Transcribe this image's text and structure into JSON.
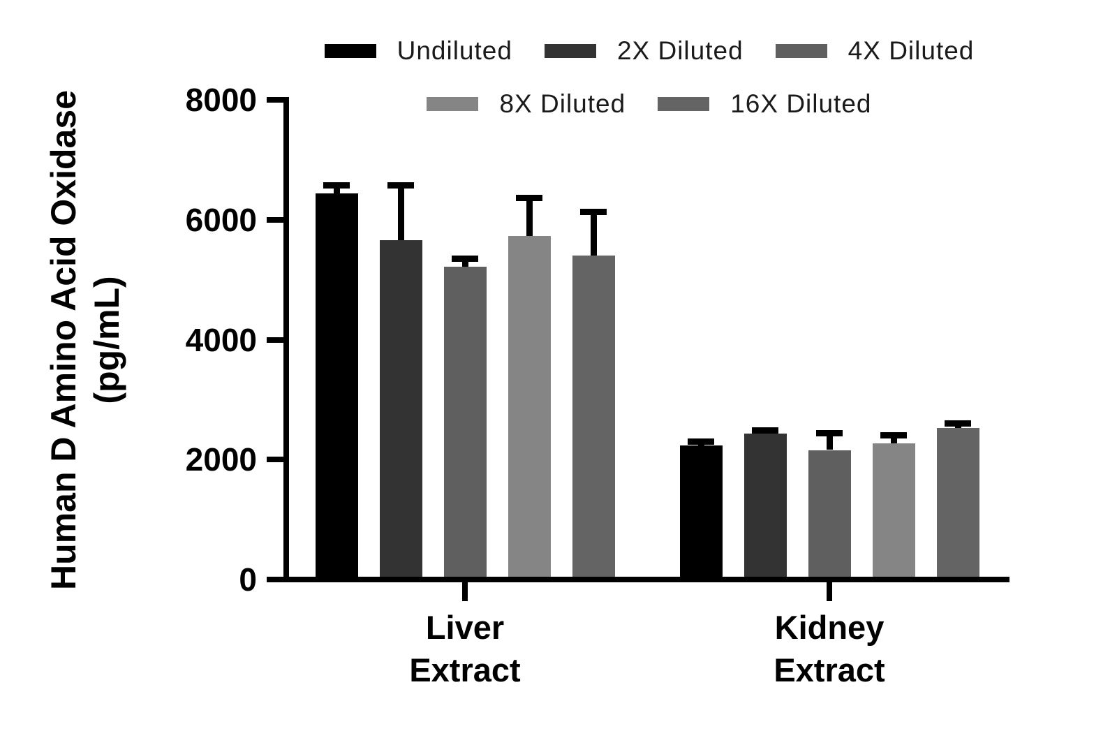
{
  "chart_data": {
    "type": "bar",
    "title": "",
    "ylabel": "Human D Amino Acid Oxidase (pg/mL)",
    "ylabel_lines": [
      "Human D Amino Acid Oxidase",
      "(pg/mL)"
    ],
    "xlabel": "",
    "categories": [
      "Liver Extract",
      "Kidney Extract"
    ],
    "category_label_lines": [
      [
        "Liver",
        "Extract"
      ],
      [
        "Kidney",
        "Extract"
      ]
    ],
    "ylim": [
      0,
      8000
    ],
    "yticks": [
      0,
      2000,
      4000,
      6000,
      8000
    ],
    "grid": false,
    "legend_position": "top",
    "legend_rows": [
      [
        0,
        1,
        2
      ],
      [
        3,
        4
      ]
    ],
    "error_bars": "upper SD only",
    "axis_color": "#000000",
    "error_bar_color": "#000000",
    "series": [
      {
        "name": "Undiluted",
        "color": "#000000",
        "values": [
          6440,
          2230
        ],
        "errors_plus": [
          140,
          70
        ]
      },
      {
        "name": "2X Diluted",
        "color": "#333333",
        "values": [
          5660,
          2430
        ],
        "errors_plus": [
          920,
          65
        ]
      },
      {
        "name": "4X Diluted",
        "color": "#5f5f5f",
        "values": [
          5220,
          2160
        ],
        "errors_plus": [
          140,
          290
        ]
      },
      {
        "name": "8X Diluted",
        "color": "#858585",
        "values": [
          5730,
          2270
        ],
        "errors_plus": [
          640,
          140
        ]
      },
      {
        "name": "16X Diluted",
        "color": "#646464",
        "values": [
          5400,
          2530
        ],
        "errors_plus": [
          740,
          75
        ]
      }
    ]
  }
}
